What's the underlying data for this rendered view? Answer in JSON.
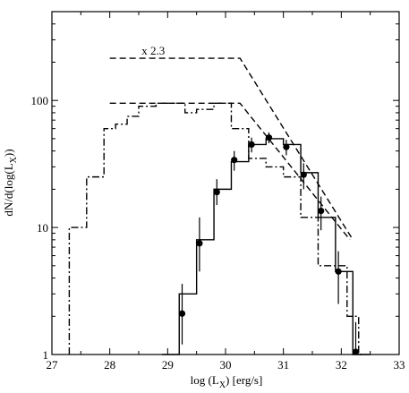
{
  "chart_data": {
    "type": "line",
    "xlabel": "log (L",
    "xlabel_sub": "X",
    "xlabel_suffix": ") [erg/s]",
    "ylabel_prefix": "dN/d(log(L",
    "ylabel_sub": "X",
    "ylabel_suffix": "))",
    "xlim": [
      27,
      33
    ],
    "ylim": [
      1,
      500
    ],
    "y_scale": "log",
    "x_ticks": [
      27,
      28,
      29,
      30,
      31,
      32,
      33
    ],
    "x_tick_labels": [
      "27",
      "28",
      "29",
      "30",
      "31",
      "32",
      "33"
    ],
    "y_ticks": [
      1,
      10,
      100
    ],
    "y_tick_labels": [
      "1",
      "10",
      "100"
    ],
    "grid": false,
    "annotations": [
      {
        "text": "x 2.3",
        "x": 28.55,
        "y": 230
      }
    ],
    "series": [
      {
        "style": "dash-dot-step",
        "edges": [
          27.3,
          27.6,
          27.9,
          28.1,
          28.3,
          28.5,
          28.8,
          29.0,
          29.3,
          29.5,
          29.8,
          30.1,
          30.4,
          30.7,
          31.0,
          31.3,
          31.6,
          31.9,
          32.1,
          32.3,
          32.5
        ],
        "values": [
          10,
          25,
          60,
          65,
          75,
          90,
          95,
          95,
          80,
          85,
          95,
          60,
          35,
          30,
          25,
          12,
          5,
          5,
          2,
          1
        ]
      },
      {
        "style": "solid-step",
        "edges": [
          28.9,
          29.2,
          29.5,
          29.8,
          30.1,
          30.4,
          30.7,
          31.0,
          31.3,
          31.6,
          31.9,
          32.2,
          32.4
        ],
        "values": [
          1,
          3,
          8,
          20,
          33,
          45,
          50,
          45,
          27,
          12,
          4.5,
          1
        ]
      },
      {
        "style": "points",
        "x": [
          29.25,
          29.55,
          29.85,
          30.15,
          30.45,
          30.75,
          31.05,
          31.35,
          31.65,
          31.95,
          32.25
        ],
        "y": [
          2.1,
          7.5,
          19,
          34,
          45,
          51,
          43,
          26,
          13.5,
          4.5,
          1.05
        ],
        "err_low": [
          1.2,
          4.5,
          15,
          28,
          39,
          46,
          37,
          20,
          9.5,
          2.5,
          0.5
        ],
        "err_high": [
          3.6,
          12,
          24,
          40,
          51,
          56,
          49,
          32,
          17.5,
          6.5,
          1.8
        ]
      },
      {
        "style": "dashed",
        "x": [
          28.0,
          30.25,
          32.15
        ],
        "y": [
          95,
          95,
          8
        ]
      },
      {
        "style": "dashed",
        "x": [
          28.0,
          30.25,
          32.2
        ],
        "y": [
          215,
          215,
          8
        ]
      }
    ]
  }
}
